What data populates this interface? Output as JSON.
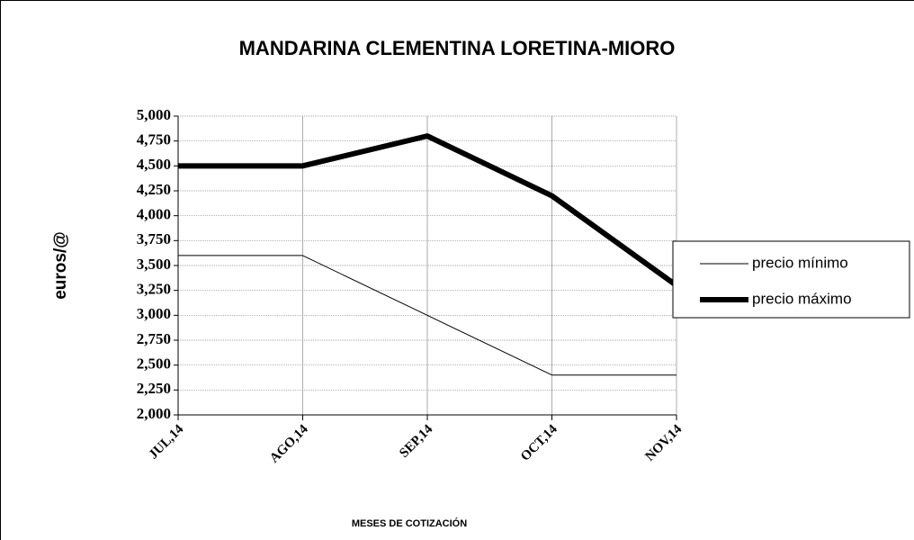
{
  "chart_data": {
    "type": "line",
    "title": "MANDARINA CLEMENTINA LORETINA-MIORO",
    "x_label": "MESES DE COTIZACIÓN",
    "y_label": "euros/@",
    "categories": [
      "JUL,14",
      "AGO,14",
      "SEP,14",
      "OCT,14",
      "NOV,14"
    ],
    "series": [
      {
        "name": "precio mínimo",
        "color": "#000000",
        "values": [
          3.6,
          3.6,
          3.0,
          2.4,
          2.4
        ]
      },
      {
        "name": "precio máximo",
        "color": "#000000",
        "values": [
          4.5,
          4.5,
          4.8,
          4.2,
          3.3
        ]
      }
    ],
    "ylim": [
      2,
      5
    ],
    "yticks": [
      {
        "value": 2,
        "label": "2,000"
      },
      {
        "value": 2.25,
        "label": "2,250"
      },
      {
        "value": 2.5,
        "label": "2,500"
      },
      {
        "value": 2.75,
        "label": "2,750"
      },
      {
        "value": 3,
        "label": "3,000"
      },
      {
        "value": 3.25,
        "label": "3,250"
      },
      {
        "value": 3.5,
        "label": "3,500"
      },
      {
        "value": 3.75,
        "label": "3,750"
      },
      {
        "value": 4,
        "label": "4,000"
      },
      {
        "value": 4.25,
        "label": "4,250"
      },
      {
        "value": 4.5,
        "label": "4,500"
      },
      {
        "value": 4.75,
        "label": "4,750"
      },
      {
        "value": 5,
        "label": "5,000"
      }
    ],
    "grid": true,
    "legend": "right"
  }
}
